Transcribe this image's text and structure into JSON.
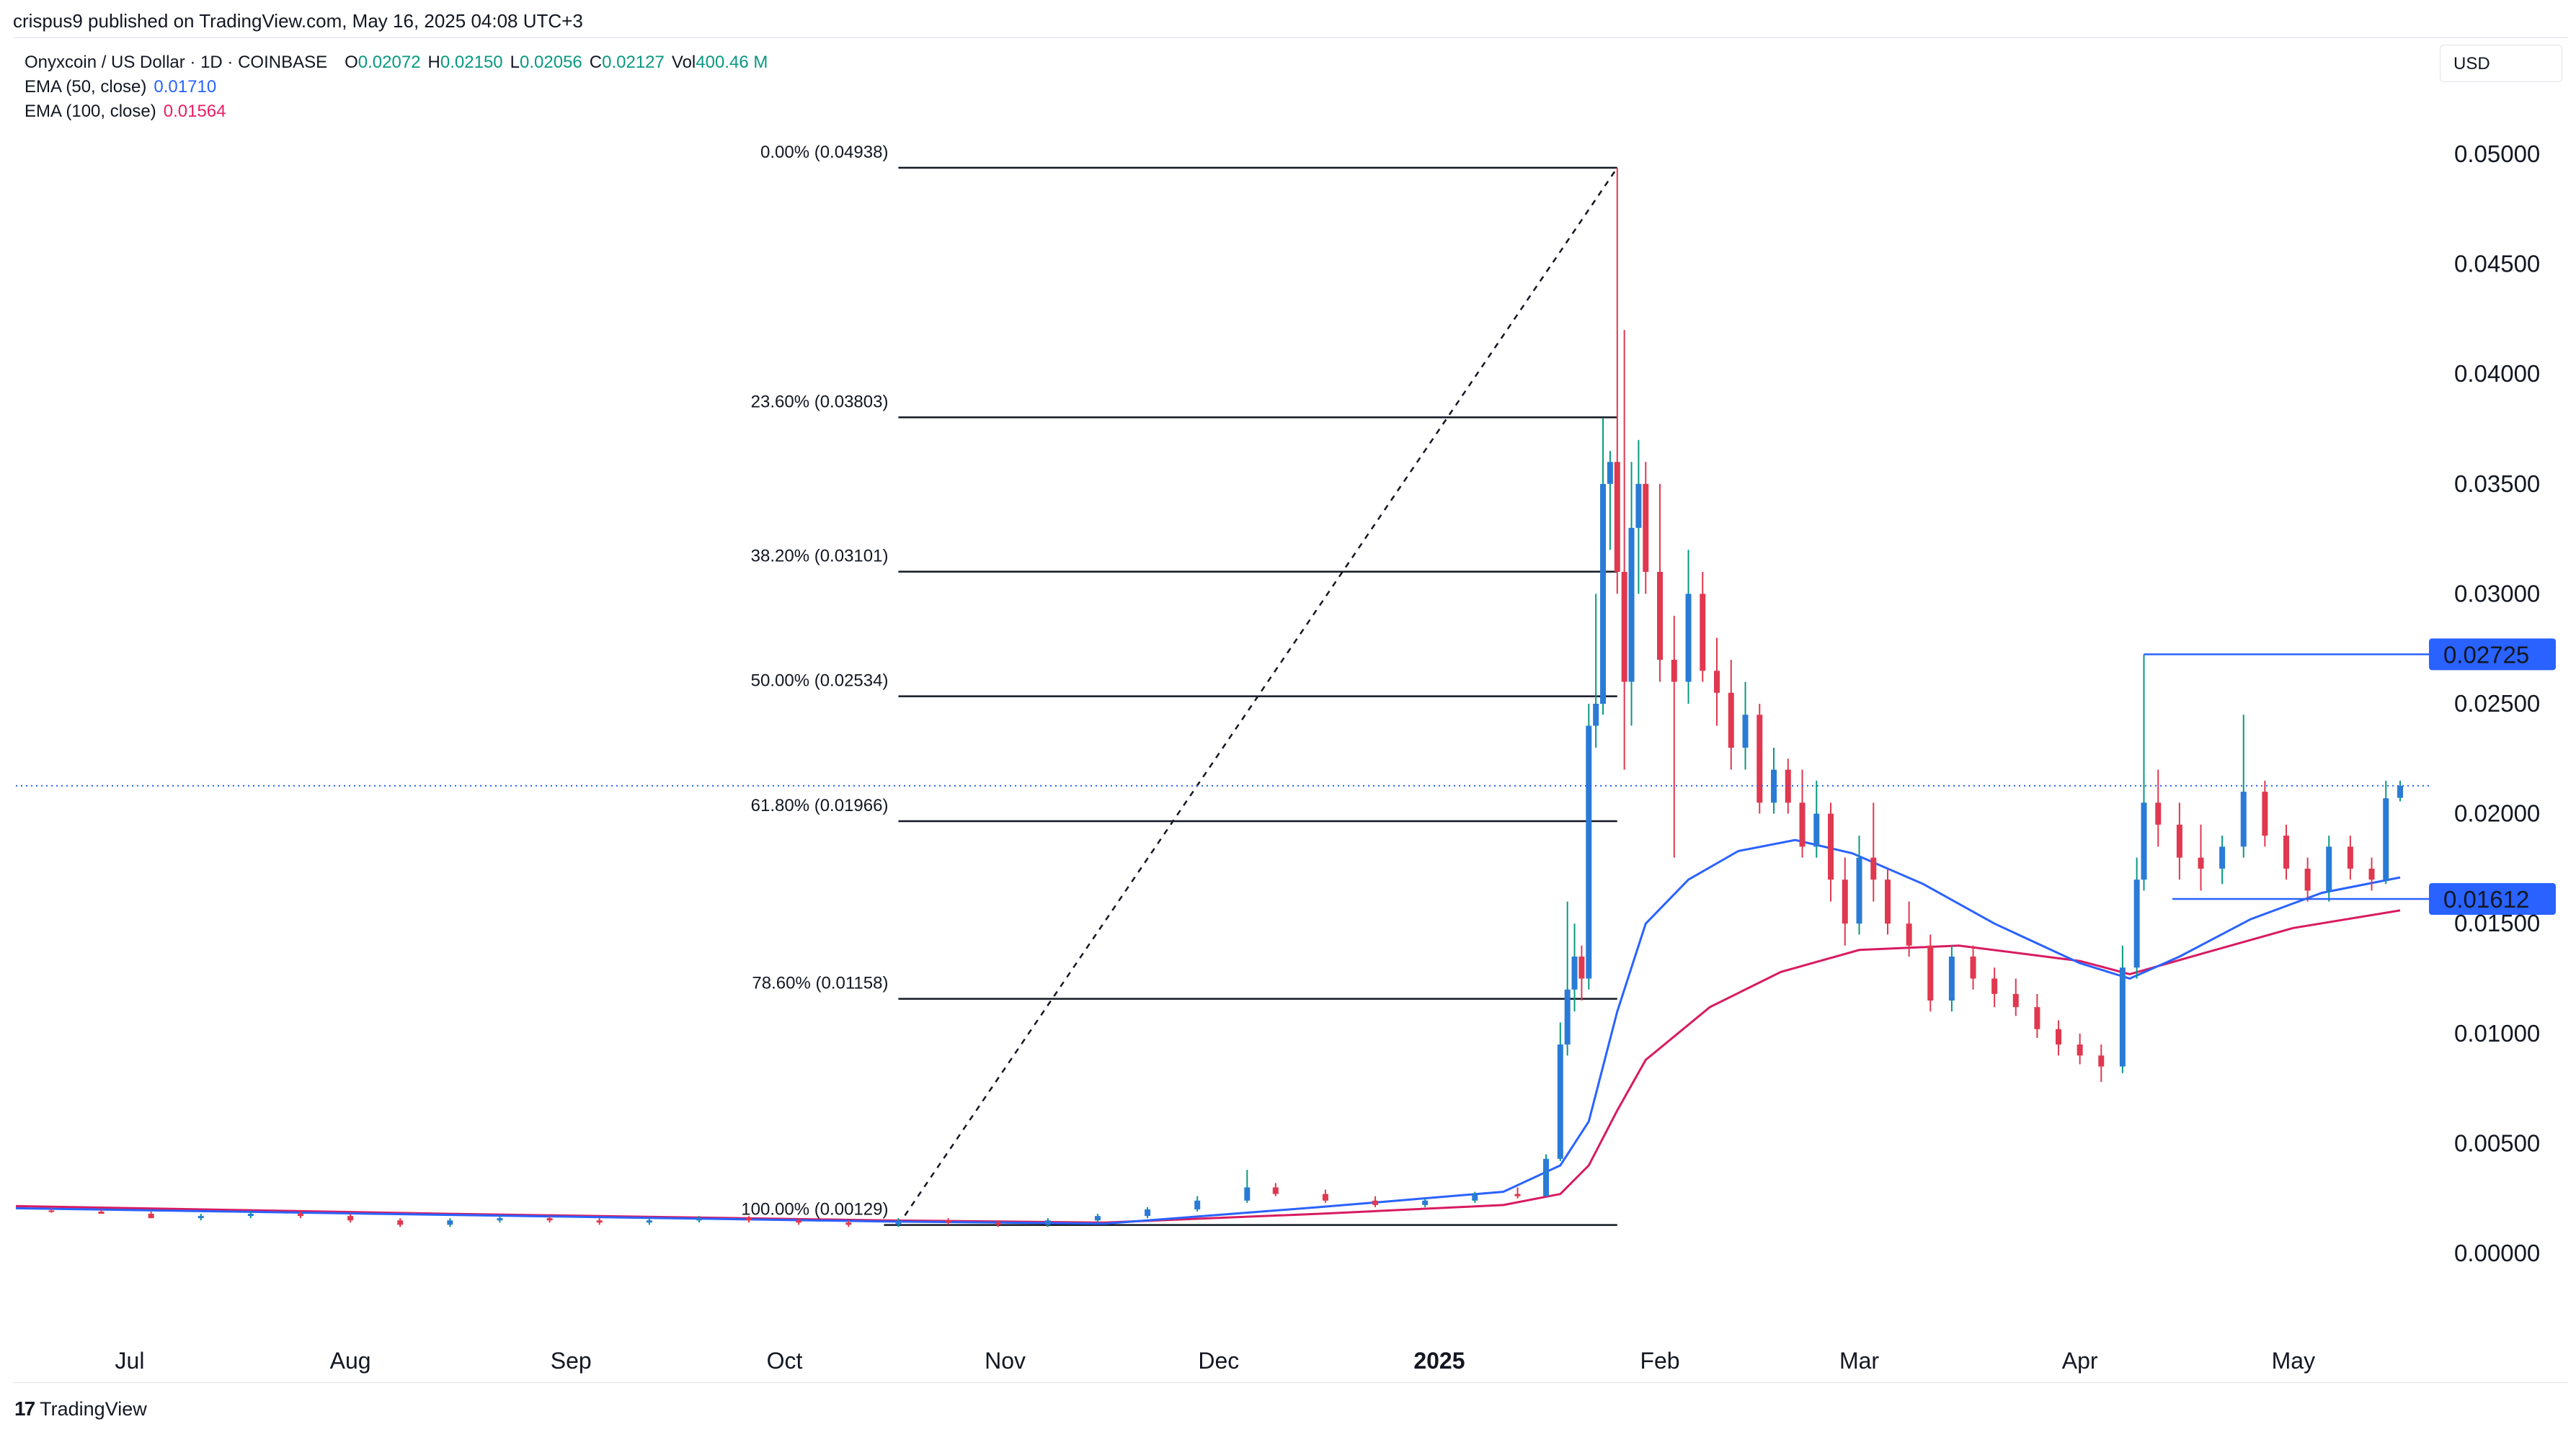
{
  "header": {
    "published": "crispus9 published on TradingView.com, May 16, 2025 04:08 UTC+3"
  },
  "legend": {
    "title": "Onyxcoin / US Dollar · 1D · COINBASE",
    "ohlc": [
      {
        "label": "O",
        "value": "0.02072"
      },
      {
        "label": "H",
        "value": "0.02150"
      },
      {
        "label": "L",
        "value": "0.02056"
      },
      {
        "label": "C",
        "value": "0.02127"
      },
      {
        "label": "Vol",
        "value": "400.46 M"
      }
    ],
    "ema50": {
      "label": "EMA (50, close)",
      "value": "0.01710"
    },
    "ema100": {
      "label": "EMA (100, close)",
      "value": "0.01564"
    }
  },
  "currency": "USD",
  "brand": "TradingView",
  "chart_data": {
    "type": "candlestick",
    "symbol": "Onyxcoin / US Dollar",
    "interval": "1D",
    "exchange": "COINBASE",
    "colors": {
      "up": "#2a7bd6",
      "down": "#e0384f",
      "ema50": "#2962ff",
      "ema100": "#d81b60",
      "fib": "#131722",
      "last_price": "#2962ff"
    },
    "y_axis": {
      "min": 0.0,
      "max": 0.05,
      "ticks": [
        "0.00000",
        "0.00500",
        "0.01000",
        "0.01500",
        "0.02000",
        "0.02500",
        "0.03000",
        "0.03500",
        "0.04000",
        "0.04500",
        "0.05000"
      ],
      "tick_values": [
        0,
        0.005,
        0.01,
        0.015,
        0.02,
        0.025,
        0.03,
        0.035,
        0.04,
        0.045,
        0.05
      ]
    },
    "x_axis": {
      "labels": [
        {
          "text": "Jul",
          "date": "2024-07-01",
          "bold": false
        },
        {
          "text": "Aug",
          "date": "2024-08-01",
          "bold": false
        },
        {
          "text": "Sep",
          "date": "2024-09-01",
          "bold": false
        },
        {
          "text": "Oct",
          "date": "2024-10-01",
          "bold": false
        },
        {
          "text": "Nov",
          "date": "2024-11-01",
          "bold": false
        },
        {
          "text": "Dec",
          "date": "2024-12-01",
          "bold": false
        },
        {
          "text": "2025",
          "date": "2025-01-01",
          "bold": true
        },
        {
          "text": "Feb",
          "date": "2025-02-01",
          "bold": false
        },
        {
          "text": "Mar",
          "date": "2025-03-01",
          "bold": false
        },
        {
          "text": "Apr",
          "date": "2025-04-01",
          "bold": false
        },
        {
          "text": "May",
          "date": "2025-05-01",
          "bold": false
        }
      ],
      "start_date": "2024-06-15",
      "end_date": "2025-05-16"
    },
    "fibonacci": {
      "start_date": "2024-10-17",
      "end_date": "2025-01-26",
      "high": 0.04938,
      "low": 0.00129,
      "levels": [
        {
          "label": "0.00% (0.04938)",
          "value": 0.04938
        },
        {
          "label": "23.60% (0.03803)",
          "value": 0.03803
        },
        {
          "label": "38.20% (0.03101)",
          "value": 0.03101
        },
        {
          "label": "50.00% (0.02534)",
          "value": 0.02534
        },
        {
          "label": "61.80% (0.01966)",
          "value": 0.01966
        },
        {
          "label": "78.60% (0.01158)",
          "value": 0.01158
        },
        {
          "label": "100.00% (0.00129)",
          "value": 0.00129
        }
      ]
    },
    "price_markers": [
      {
        "label": "0.02725",
        "value": 0.02725,
        "from_date": "2025-04-10"
      },
      {
        "label": "0.01612",
        "value": 0.01612,
        "from_date": "2025-04-14"
      }
    ],
    "last_price": 0.02127,
    "ema50_points": [
      [
        "2024-06-15",
        0.00205
      ],
      [
        "2024-08-15",
        0.00175
      ],
      [
        "2024-10-15",
        0.00145
      ],
      [
        "2024-11-15",
        0.00135
      ],
      [
        "2024-12-15",
        0.0021
      ],
      [
        "2025-01-10",
        0.0028
      ],
      [
        "2025-01-18",
        0.004
      ],
      [
        "2025-01-22",
        0.006
      ],
      [
        "2025-01-26",
        0.011
      ],
      [
        "2025-01-30",
        0.015
      ],
      [
        "2025-02-05",
        0.017
      ],
      [
        "2025-02-12",
        0.0183
      ],
      [
        "2025-02-20",
        0.0188
      ],
      [
        "2025-02-28",
        0.0182
      ],
      [
        "2025-03-10",
        0.0168
      ],
      [
        "2025-03-20",
        0.015
      ],
      [
        "2025-04-01",
        0.0132
      ],
      [
        "2025-04-08",
        0.0125
      ],
      [
        "2025-04-15",
        0.0135
      ],
      [
        "2025-04-25",
        0.0152
      ],
      [
        "2025-05-05",
        0.0164
      ],
      [
        "2025-05-16",
        0.0171
      ]
    ],
    "ema100_points": [
      [
        "2024-06-15",
        0.00215
      ],
      [
        "2024-08-15",
        0.0018
      ],
      [
        "2024-10-15",
        0.0015
      ],
      [
        "2024-11-15",
        0.0014
      ],
      [
        "2024-12-15",
        0.0018
      ],
      [
        "2025-01-10",
        0.0022
      ],
      [
        "2025-01-18",
        0.0027
      ],
      [
        "2025-01-22",
        0.004
      ],
      [
        "2025-01-26",
        0.0065
      ],
      [
        "2025-01-30",
        0.0088
      ],
      [
        "2025-02-08",
        0.0112
      ],
      [
        "2025-02-18",
        0.0128
      ],
      [
        "2025-03-01",
        0.0138
      ],
      [
        "2025-03-15",
        0.014
      ],
      [
        "2025-04-01",
        0.0133
      ],
      [
        "2025-04-08",
        0.0127
      ],
      [
        "2025-04-20",
        0.0138
      ],
      [
        "2025-05-01",
        0.0148
      ],
      [
        "2025-05-16",
        0.0156
      ]
    ],
    "candles": [
      [
        "2024-06-20",
        0.00195,
        0.00205,
        0.00185,
        0.0019
      ],
      [
        "2024-06-27",
        0.0019,
        0.002,
        0.0018,
        0.0018
      ],
      [
        "2024-07-04",
        0.0018,
        0.0019,
        0.0016,
        0.0016
      ],
      [
        "2024-07-11",
        0.0016,
        0.0018,
        0.0015,
        0.0017
      ],
      [
        "2024-07-18",
        0.0017,
        0.0019,
        0.0016,
        0.0018
      ],
      [
        "2024-07-25",
        0.0018,
        0.0019,
        0.0016,
        0.0017
      ],
      [
        "2024-08-01",
        0.0017,
        0.0018,
        0.0014,
        0.0015
      ],
      [
        "2024-08-08",
        0.0015,
        0.0016,
        0.0012,
        0.0013
      ],
      [
        "2024-08-15",
        0.0013,
        0.0016,
        0.0012,
        0.0015
      ],
      [
        "2024-08-22",
        0.0015,
        0.0017,
        0.0014,
        0.0016
      ],
      [
        "2024-08-29",
        0.0016,
        0.0017,
        0.0014,
        0.0015
      ],
      [
        "2024-09-05",
        0.0015,
        0.0016,
        0.0013,
        0.0014
      ],
      [
        "2024-09-12",
        0.0014,
        0.0016,
        0.0013,
        0.0015
      ],
      [
        "2024-09-19",
        0.0015,
        0.0017,
        0.0014,
        0.0016
      ],
      [
        "2024-09-26",
        0.0016,
        0.0017,
        0.0014,
        0.0015
      ],
      [
        "2024-10-03",
        0.0015,
        0.0016,
        0.0013,
        0.0014
      ],
      [
        "2024-10-10",
        0.0014,
        0.0015,
        0.0012,
        0.0013
      ],
      [
        "2024-10-17",
        0.0013,
        0.0016,
        0.0012,
        0.0015
      ],
      [
        "2024-10-24",
        0.0015,
        0.0016,
        0.0013,
        0.0014
      ],
      [
        "2024-10-31",
        0.0014,
        0.0015,
        0.0012,
        0.0013
      ],
      [
        "2024-11-07",
        0.0013,
        0.0016,
        0.0012,
        0.0015
      ],
      [
        "2024-11-14",
        0.0015,
        0.0018,
        0.0014,
        0.0017
      ],
      [
        "2024-11-21",
        0.0017,
        0.0021,
        0.0016,
        0.002
      ],
      [
        "2024-11-28",
        0.002,
        0.0026,
        0.0019,
        0.0024
      ],
      [
        "2024-12-05",
        0.0024,
        0.0038,
        0.0023,
        0.003
      ],
      [
        "2024-12-09",
        0.003,
        0.0032,
        0.0026,
        0.0027
      ],
      [
        "2024-12-16",
        0.0027,
        0.0029,
        0.0023,
        0.0024
      ],
      [
        "2024-12-23",
        0.0024,
        0.0026,
        0.0021,
        0.0022
      ],
      [
        "2024-12-30",
        0.0022,
        0.0025,
        0.0021,
        0.0024
      ],
      [
        "2025-01-06",
        0.0024,
        0.0028,
        0.0023,
        0.0027
      ],
      [
        "2025-01-12",
        0.0027,
        0.003,
        0.0025,
        0.0026
      ],
      [
        "2025-01-16",
        0.0026,
        0.0045,
        0.0026,
        0.0043
      ],
      [
        "2025-01-18",
        0.0043,
        0.0105,
        0.0042,
        0.0095
      ],
      [
        "2025-01-19",
        0.0095,
        0.016,
        0.009,
        0.012
      ],
      [
        "2025-01-20",
        0.012,
        0.015,
        0.011,
        0.0135
      ],
      [
        "2025-01-21",
        0.0135,
        0.014,
        0.0115,
        0.0125
      ],
      [
        "2025-01-22",
        0.0125,
        0.025,
        0.012,
        0.024
      ],
      [
        "2025-01-23",
        0.024,
        0.03,
        0.023,
        0.025
      ],
      [
        "2025-01-24",
        0.025,
        0.038,
        0.0245,
        0.035
      ],
      [
        "2025-01-25",
        0.035,
        0.0365,
        0.032,
        0.036
      ],
      [
        "2025-01-26",
        0.036,
        0.04938,
        0.03,
        0.031
      ],
      [
        "2025-01-27",
        0.031,
        0.042,
        0.022,
        0.026
      ],
      [
        "2025-01-28",
        0.026,
        0.036,
        0.024,
        0.033
      ],
      [
        "2025-01-29",
        0.033,
        0.037,
        0.03,
        0.035
      ],
      [
        "2025-01-30",
        0.035,
        0.036,
        0.03,
        0.031
      ],
      [
        "2025-02-01",
        0.031,
        0.035,
        0.026,
        0.027
      ],
      [
        "2025-02-03",
        0.027,
        0.029,
        0.018,
        0.026
      ],
      [
        "2025-02-05",
        0.026,
        0.032,
        0.025,
        0.03
      ],
      [
        "2025-02-07",
        0.03,
        0.031,
        0.026,
        0.0265
      ],
      [
        "2025-02-09",
        0.0265,
        0.028,
        0.024,
        0.0255
      ],
      [
        "2025-02-11",
        0.0255,
        0.027,
        0.022,
        0.023
      ],
      [
        "2025-02-13",
        0.023,
        0.026,
        0.022,
        0.0245
      ],
      [
        "2025-02-15",
        0.0245,
        0.025,
        0.02,
        0.0205
      ],
      [
        "2025-02-17",
        0.0205,
        0.023,
        0.02,
        0.022
      ],
      [
        "2025-02-19",
        0.022,
        0.0225,
        0.02,
        0.0205
      ],
      [
        "2025-02-21",
        0.0205,
        0.022,
        0.018,
        0.0185
      ],
      [
        "2025-02-23",
        0.0185,
        0.0215,
        0.018,
        0.02
      ],
      [
        "2025-02-25",
        0.02,
        0.0205,
        0.016,
        0.017
      ],
      [
        "2025-02-27",
        0.017,
        0.018,
        0.014,
        0.015
      ],
      [
        "2025-03-01",
        0.015,
        0.019,
        0.0145,
        0.018
      ],
      [
        "2025-03-03",
        0.018,
        0.0205,
        0.016,
        0.017
      ],
      [
        "2025-03-05",
        0.017,
        0.0175,
        0.0145,
        0.015
      ],
      [
        "2025-03-08",
        0.015,
        0.016,
        0.0135,
        0.014
      ],
      [
        "2025-03-11",
        0.014,
        0.0145,
        0.011,
        0.0115
      ],
      [
        "2025-03-14",
        0.0115,
        0.014,
        0.011,
        0.0135
      ],
      [
        "2025-03-17",
        0.0135,
        0.014,
        0.012,
        0.0125
      ],
      [
        "2025-03-20",
        0.0125,
        0.013,
        0.0112,
        0.0118
      ],
      [
        "2025-03-23",
        0.0118,
        0.0125,
        0.0108,
        0.0112
      ],
      [
        "2025-03-26",
        0.0112,
        0.0118,
        0.0098,
        0.0102
      ],
      [
        "2025-03-29",
        0.0102,
        0.0106,
        0.009,
        0.0095
      ],
      [
        "2025-04-01",
        0.0095,
        0.01,
        0.0086,
        0.009
      ],
      [
        "2025-04-04",
        0.009,
        0.0095,
        0.0078,
        0.0085
      ],
      [
        "2025-04-07",
        0.0085,
        0.014,
        0.0082,
        0.013
      ],
      [
        "2025-04-09",
        0.013,
        0.018,
        0.0125,
        0.017
      ],
      [
        "2025-04-10",
        0.017,
        0.02725,
        0.0165,
        0.0205
      ],
      [
        "2025-04-12",
        0.0205,
        0.022,
        0.0185,
        0.0195
      ],
      [
        "2025-04-15",
        0.0195,
        0.0205,
        0.017,
        0.018
      ],
      [
        "2025-04-18",
        0.018,
        0.0195,
        0.0165,
        0.0175
      ],
      [
        "2025-04-21",
        0.0175,
        0.019,
        0.0168,
        0.0185
      ],
      [
        "2025-04-24",
        0.0185,
        0.0245,
        0.018,
        0.021
      ],
      [
        "2025-04-27",
        0.021,
        0.0215,
        0.0185,
        0.019
      ],
      [
        "2025-04-30",
        0.019,
        0.0195,
        0.017,
        0.0175
      ],
      [
        "2025-05-03",
        0.0175,
        0.018,
        0.016,
        0.0165
      ],
      [
        "2025-05-06",
        0.0165,
        0.019,
        0.016,
        0.0185
      ],
      [
        "2025-05-09",
        0.0185,
        0.019,
        0.017,
        0.0175
      ],
      [
        "2025-05-12",
        0.0175,
        0.018,
        0.0165,
        0.017
      ],
      [
        "2025-05-14",
        0.017,
        0.0215,
        0.0168,
        0.0207
      ],
      [
        "2025-05-16",
        0.02072,
        0.0215,
        0.02056,
        0.02127
      ]
    ]
  }
}
